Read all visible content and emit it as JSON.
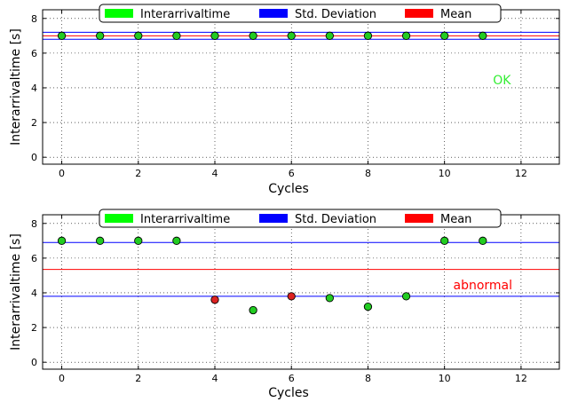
{
  "chart_data": [
    {
      "type": "scatter",
      "xlabel": "Cycles",
      "ylabel": "Interarrivaltime [s]",
      "xlim": [
        -0.5,
        13
      ],
      "ylim": [
        -0.4,
        8.5
      ],
      "xticks": [
        0,
        2,
        4,
        6,
        8,
        10,
        12
      ],
      "yticks": [
        0,
        2,
        4,
        6,
        8
      ],
      "grid": true,
      "legend_position": "top",
      "legend": [
        {
          "label": "Interarrivaltime",
          "color": "#00ff00"
        },
        {
          "label": "Std. Deviation",
          "color": "#0000ff"
        },
        {
          "label": "Mean",
          "color": "#ff0000"
        }
      ],
      "x": [
        0,
        1,
        2,
        3,
        4,
        5,
        6,
        7,
        8,
        9,
        10,
        11
      ],
      "y": [
        7.0,
        7.0,
        7.0,
        7.0,
        7.0,
        7.0,
        7.0,
        7.0,
        7.0,
        7.0,
        7.0,
        7.0
      ],
      "point_colors": [
        "#22cc22",
        "#22cc22",
        "#22cc22",
        "#22cc22",
        "#22cc22",
        "#22cc22",
        "#22cc22",
        "#22cc22",
        "#22cc22",
        "#22cc22",
        "#22cc22",
        "#22cc22"
      ],
      "hlines": [
        {
          "y": 7.2,
          "color": "#0000ff"
        },
        {
          "y": 7.0,
          "color": "#ff0000"
        },
        {
          "y": 6.8,
          "color": "#0000ff"
        }
      ],
      "annotation": {
        "text": "OK",
        "x": 11.5,
        "y": 4.2,
        "color": "#33ee33"
      }
    },
    {
      "type": "scatter",
      "xlabel": "Cycles",
      "ylabel": "Interarrivaltime [s]",
      "xlim": [
        -0.5,
        13
      ],
      "ylim": [
        -0.4,
        8.5
      ],
      "xticks": [
        0,
        2,
        4,
        6,
        8,
        10,
        12
      ],
      "yticks": [
        0,
        2,
        4,
        6,
        8
      ],
      "grid": true,
      "legend_position": "top",
      "legend": [
        {
          "label": "Interarrivaltime",
          "color": "#00ff00"
        },
        {
          "label": "Std. Deviation",
          "color": "#0000ff"
        },
        {
          "label": "Mean",
          "color": "#ff0000"
        }
      ],
      "x": [
        0,
        1,
        2,
        3,
        4,
        5,
        6,
        7,
        8,
        9,
        10,
        11
      ],
      "y": [
        7.0,
        7.0,
        7.0,
        7.0,
        3.6,
        3.0,
        3.8,
        3.7,
        3.2,
        3.8,
        7.0,
        7.0
      ],
      "point_colors": [
        "#22cc22",
        "#22cc22",
        "#22cc22",
        "#22cc22",
        "#dd2222",
        "#22cc22",
        "#dd2222",
        "#22cc22",
        "#22cc22",
        "#22cc22",
        "#22cc22",
        "#22cc22"
      ],
      "hlines": [
        {
          "y": 6.9,
          "color": "#0000ff"
        },
        {
          "y": 5.35,
          "color": "#ff0000"
        },
        {
          "y": 3.8,
          "color": "#0000ff"
        }
      ],
      "annotation": {
        "text": "abnormal",
        "x": 11.0,
        "y": 4.2,
        "color": "#ff0000"
      }
    }
  ]
}
